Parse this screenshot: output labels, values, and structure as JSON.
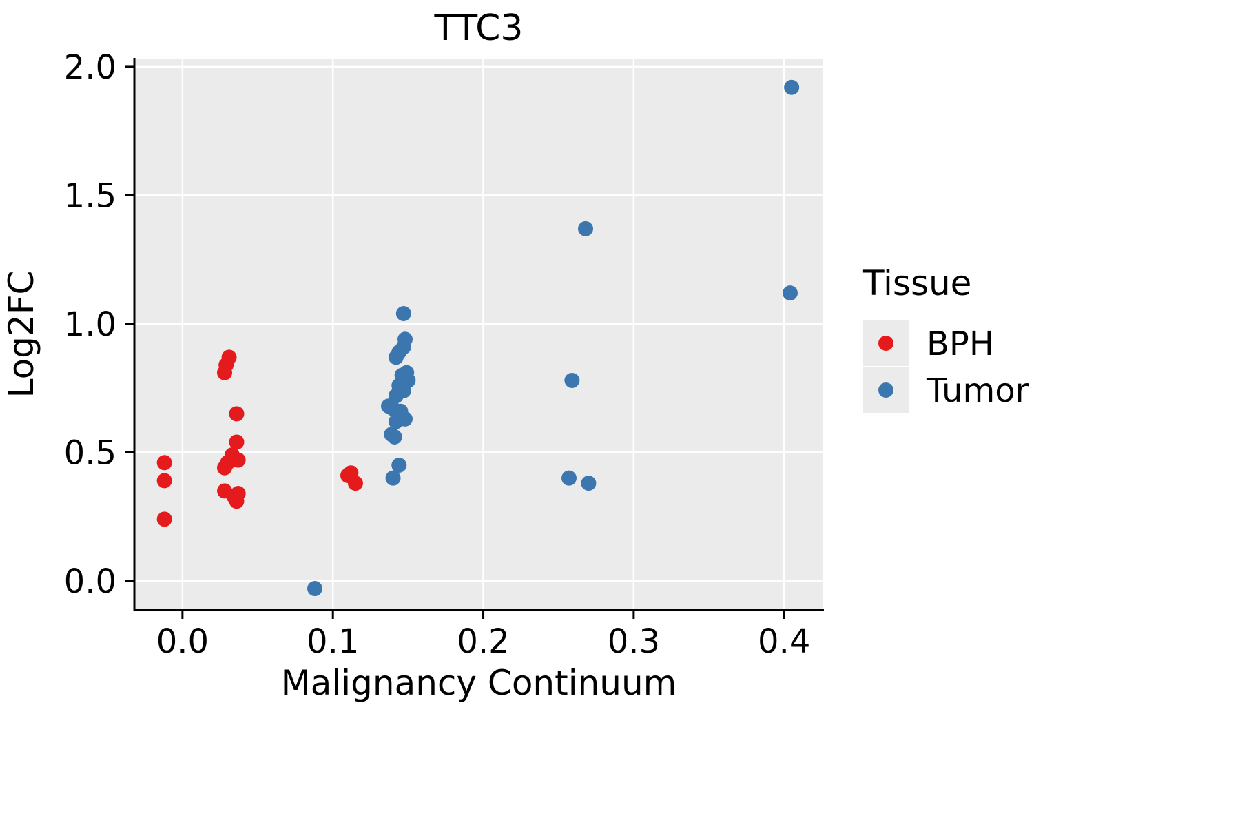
{
  "chart_data": {
    "type": "scatter",
    "title": "TTC3",
    "xlabel": "Malignancy Continuum",
    "ylabel": "Log2FC",
    "xlim": [
      -0.032,
      0.426
    ],
    "ylim": [
      -0.113,
      2.032
    ],
    "x_ticks": {
      "values": [
        0.0,
        0.1,
        0.2,
        0.3,
        0.4
      ],
      "labels": [
        "0.0",
        "0.1",
        "0.2",
        "0.3",
        "0.4"
      ]
    },
    "y_ticks": {
      "values": [
        0.0,
        0.5,
        1.0,
        1.5,
        2.0
      ],
      "labels": [
        "0.0",
        "0.5",
        "1.0",
        "1.5",
        "2.0"
      ]
    },
    "grid": true,
    "legend": {
      "title": "Tissue",
      "position": "right"
    },
    "colors": {
      "panel_background": "#ebebeb",
      "gridline": "#ffffff",
      "axis": "#000000",
      "legend_key_background": "#ebebeb",
      "bph": "#e41a1c",
      "tumor": "#3b76af"
    },
    "series": [
      {
        "name": "BPH",
        "color": "#e41a1c",
        "points": [
          [
            -0.012,
            0.46
          ],
          [
            -0.012,
            0.39
          ],
          [
            -0.012,
            0.24
          ],
          [
            0.031,
            0.87
          ],
          [
            0.029,
            0.84
          ],
          [
            0.028,
            0.81
          ],
          [
            0.036,
            0.65
          ],
          [
            0.036,
            0.54
          ],
          [
            0.033,
            0.49
          ],
          [
            0.037,
            0.47
          ],
          [
            0.03,
            0.46
          ],
          [
            0.028,
            0.44
          ],
          [
            0.028,
            0.35
          ],
          [
            0.037,
            0.34
          ],
          [
            0.034,
            0.33
          ],
          [
            0.036,
            0.31
          ],
          [
            0.112,
            0.42
          ],
          [
            0.11,
            0.41
          ],
          [
            0.115,
            0.38
          ]
        ]
      },
      {
        "name": "Tumor",
        "color": "#3b76af",
        "points": [
          [
            0.088,
            -0.03
          ],
          [
            0.147,
            1.04
          ],
          [
            0.148,
            0.94
          ],
          [
            0.147,
            0.91
          ],
          [
            0.144,
            0.89
          ],
          [
            0.142,
            0.87
          ],
          [
            0.149,
            0.81
          ],
          [
            0.146,
            0.8
          ],
          [
            0.15,
            0.78
          ],
          [
            0.144,
            0.76
          ],
          [
            0.147,
            0.74
          ],
          [
            0.142,
            0.72
          ],
          [
            0.137,
            0.68
          ],
          [
            0.14,
            0.67
          ],
          [
            0.145,
            0.66
          ],
          [
            0.148,
            0.63
          ],
          [
            0.142,
            0.62
          ],
          [
            0.139,
            0.57
          ],
          [
            0.141,
            0.56
          ],
          [
            0.144,
            0.45
          ],
          [
            0.14,
            0.4
          ],
          [
            0.268,
            1.37
          ],
          [
            0.259,
            0.78
          ],
          [
            0.257,
            0.4
          ],
          [
            0.27,
            0.38
          ],
          [
            0.405,
            1.92
          ],
          [
            0.404,
            1.12
          ]
        ]
      }
    ]
  }
}
